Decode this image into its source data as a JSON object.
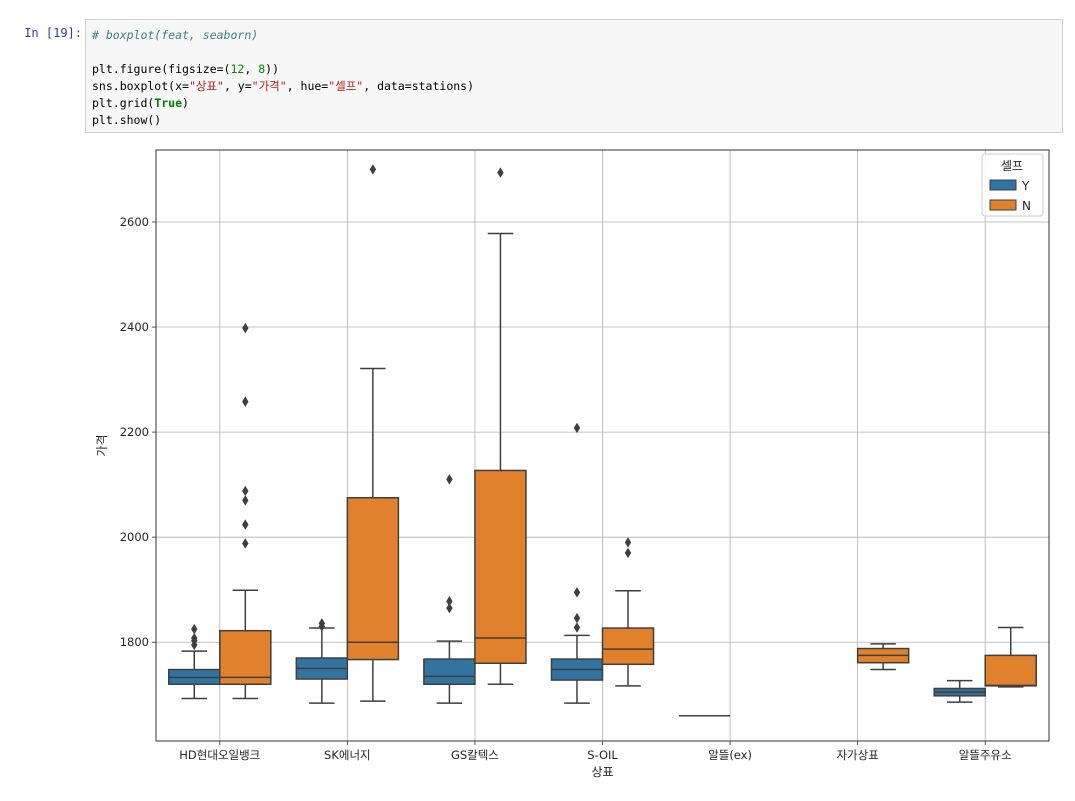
{
  "cell": {
    "prompt": "In [19]:",
    "code": [
      [
        {
          "t": "# boxplot(feat, seaborn)",
          "c": "comment"
        }
      ],
      [
        {
          "t": "",
          "c": ""
        }
      ],
      [
        {
          "t": "plt.figure(figsize=(",
          "c": ""
        },
        {
          "t": "12",
          "c": "num"
        },
        {
          "t": ", ",
          "c": ""
        },
        {
          "t": "8",
          "c": "num"
        },
        {
          "t": "))",
          "c": ""
        }
      ],
      [
        {
          "t": "sns.boxplot(x=",
          "c": ""
        },
        {
          "t": "\"상표\"",
          "c": "str"
        },
        {
          "t": ", y=",
          "c": ""
        },
        {
          "t": "\"가격\"",
          "c": "str"
        },
        {
          "t": ", hue=",
          "c": ""
        },
        {
          "t": "\"셀프\"",
          "c": "str"
        },
        {
          "t": ", data=stations)",
          "c": ""
        }
      ],
      [
        {
          "t": "plt.grid(",
          "c": ""
        },
        {
          "t": "True",
          "c": "kw"
        },
        {
          "t": ")",
          "c": ""
        }
      ],
      [
        {
          "t": "plt.show()",
          "c": ""
        }
      ]
    ]
  },
  "chart_data": {
    "type": "box",
    "xlabel": "상표",
    "ylabel": "가격",
    "ylim": [
      1612,
      2737
    ],
    "yticks": [
      1800,
      2000,
      2200,
      2400,
      2600
    ],
    "grid": true,
    "legend": {
      "title": "셀프",
      "placement": "top-right"
    },
    "categories": [
      "HD현대오일뱅크",
      "SK에너지",
      "GS칼텍스",
      "S-OIL",
      "알뜰(ex)",
      "자가상표",
      "알뜰주유소"
    ],
    "series": [
      {
        "name": "Y",
        "color": "#3274a1",
        "boxes": [
          {
            "category": "HD현대오일뱅크",
            "min": 1693,
            "q1": 1720,
            "median": 1733,
            "q3": 1748,
            "max": 1783,
            "outliers": [
              1795,
              1803,
              1808,
              1825
            ]
          },
          {
            "category": "SK에너지",
            "min": 1684,
            "q1": 1730,
            "median": 1750,
            "q3": 1770,
            "max": 1827,
            "outliers": [
              1830,
              1836
            ]
          },
          {
            "category": "GS칼텍스",
            "min": 1684,
            "q1": 1720,
            "median": 1735,
            "q3": 1768,
            "max": 1802,
            "outliers": [
              1865,
              1878,
              2110
            ]
          },
          {
            "category": "S-OIL",
            "min": 1684,
            "q1": 1728,
            "median": 1748,
            "q3": 1768,
            "max": 1813,
            "outliers": [
              1828,
              1846,
              1895,
              2208
            ]
          },
          {
            "category": "알뜰(ex)",
            "min": 1660,
            "q1": 1660,
            "median": 1660,
            "q3": 1660,
            "max": 1660,
            "outliers": []
          },
          {
            "category": "알뜰주유소",
            "min": 1686,
            "q1": 1698,
            "median": 1705,
            "q3": 1712,
            "max": 1727,
            "outliers": []
          }
        ]
      },
      {
        "name": "N",
        "color": "#e1812c",
        "boxes": [
          {
            "category": "HD현대오일뱅크",
            "min": 1693,
            "q1": 1720,
            "median": 1733,
            "q3": 1822,
            "max": 1899,
            "outliers": [
              1988,
              2024,
              2070,
              2088,
              2258,
              2398
            ]
          },
          {
            "category": "SK에너지",
            "min": 1688,
            "q1": 1767,
            "median": 1800,
            "q3": 2075,
            "max": 2321,
            "outliers": [
              2700
            ]
          },
          {
            "category": "GS칼텍스",
            "min": 1720,
            "q1": 1760,
            "median": 1808,
            "q3": 2127,
            "max": 2578,
            "outliers": [
              2694
            ]
          },
          {
            "category": "S-OIL",
            "min": 1717,
            "q1": 1758,
            "median": 1787,
            "q3": 1827,
            "max": 1898,
            "outliers": [
              1970,
              1990
            ]
          },
          {
            "category": "자가상표",
            "min": 1748,
            "q1": 1761,
            "median": 1775,
            "q3": 1788,
            "max": 1797,
            "outliers": []
          },
          {
            "category": "알뜰주유소",
            "min": 1715,
            "q1": 1717,
            "median": 1718,
            "q3": 1775,
            "max": 1828,
            "outliers": []
          }
        ]
      }
    ]
  }
}
